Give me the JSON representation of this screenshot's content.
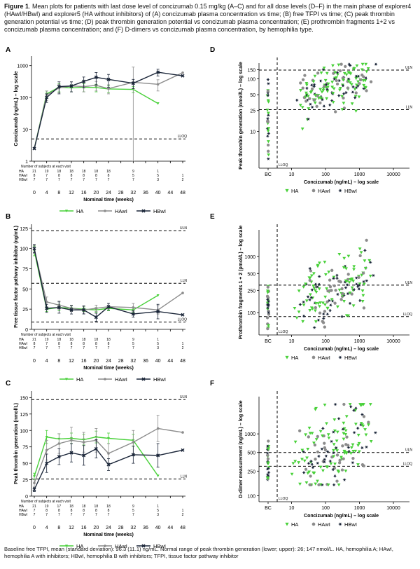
{
  "caption": {
    "lead": "Figure 1",
    "text": ". Mean plots for patients with last dose level of concizumab 0.15 mg/kg (A–C) and for all dose levels (D–F) in the main phase of explorer4 (HAwI/HBwI) and explorer5 (HA without inhibitors) of (A) concizumab plasma concentration vs time; (B) free TFPI vs time; (C) peak thrombin generation potential vs time; (D) peak thrombin generation potential vs concizumab plasma concentration; (E) prothrombin fragments 1+2 vs concizumab plasma concentration; and (F) D-dimers vs concizumab plasma concentration, by hemophilia type."
  },
  "footnote": "Baseline free TFPI, mean (standard deviation): 96.3 (11.1) ng/mL. Normal range of peak thrombin generation (lower; upper): 26; 147 nmol/L. HA, hemophilia A; HAwI, hemophilia A with inhibitors; HBwI, hemophilia B with inhibitors; TFPI, tissue factor pathway inhibitor",
  "colors": {
    "HA": "#49d13a",
    "HAwI": "#8c8c8c",
    "HBwI": "#1a2538"
  },
  "legend": [
    {
      "name": "HA",
      "marker": "triangle"
    },
    {
      "name": "HAwI",
      "marker": "circle"
    },
    {
      "name": "HBwI",
      "marker": "star"
    }
  ],
  "subjects_table": {
    "title": "Number of subjects at each visit",
    "rows": [
      {
        "name": "HA",
        "values": [
          "21",
          "19",
          "18",
          "18",
          "18",
          "18",
          "18",
          "",
          "9",
          "",
          "1",
          ""
        ]
      },
      {
        "name": "HAwI",
        "values": [
          "8",
          "7",
          "8",
          "8",
          "8",
          "8",
          "8",
          "",
          "5",
          "",
          "5",
          "1"
        ]
      },
      {
        "name": "HBwI",
        "values": [
          "7",
          "7",
          "7",
          "7",
          "7",
          "7",
          "7",
          "",
          "7",
          "",
          "3",
          "2"
        ]
      }
    ],
    "rows_C": [
      {
        "name": "HA",
        "values": [
          "21",
          "19",
          "17",
          "18",
          "18",
          "18",
          "18",
          "",
          "9",
          "",
          "1",
          ""
        ]
      },
      {
        "name": "HAwI",
        "values": [
          "7",
          "8",
          "8",
          "8",
          "8",
          "8",
          "8",
          "",
          "5",
          "",
          "5",
          "1"
        ]
      },
      {
        "name": "HBwI",
        "values": [
          "7",
          "7",
          "7",
          "7",
          "7",
          "7",
          "7",
          "",
          "7",
          "",
          "3",
          "2"
        ]
      }
    ]
  },
  "chart_data": [
    {
      "id": "A",
      "type": "line",
      "ylabel": "Concizumab (ng/mL) – log scale",
      "xlabel": "Nominal time (weeks)",
      "x": [
        0,
        4,
        8,
        12,
        16,
        20,
        24,
        28,
        32,
        36,
        40,
        44,
        48
      ],
      "xticks": [
        "0",
        "4",
        "8",
        "12",
        "16",
        "20",
        "24",
        "28",
        "32",
        "36",
        "40",
        "44",
        "48"
      ],
      "yscale": "log",
      "ylim": [
        1,
        2000
      ],
      "yticks": [
        "1",
        "10",
        "100",
        "1000"
      ],
      "hlines": [
        {
          "value": 5,
          "label": "LLOQ"
        }
      ],
      "series": [
        {
          "name": "HA",
          "x": [
            0,
            4,
            8,
            12,
            16,
            20,
            24,
            32,
            40
          ],
          "values": [
            2.5,
            130,
            210,
            200,
            210,
            205,
            185,
            180,
            65
          ],
          "err": [
            0,
            30,
            60,
            50,
            60,
            55,
            45,
            40,
            0
          ]
        },
        {
          "name": "HAwI",
          "x": [
            0,
            4,
            8,
            12,
            16,
            20,
            24,
            32,
            40,
            48
          ],
          "values": [
            2.5,
            120,
            200,
            230,
            220,
            240,
            190,
            300,
            260,
            600
          ],
          "err": [
            0,
            40,
            60,
            80,
            70,
            80,
            60,
            600,
            100,
            0
          ]
        },
        {
          "name": "HBwI",
          "x": [
            0,
            4,
            8,
            12,
            16,
            20,
            24,
            32,
            40,
            48
          ],
          "values": [
            2.5,
            100,
            220,
            230,
            320,
            430,
            370,
            280,
            620,
            480
          ],
          "err": [
            0,
            30,
            90,
            80,
            120,
            180,
            160,
            90,
            150,
            0
          ]
        }
      ]
    },
    {
      "id": "B",
      "type": "line",
      "ylabel": "Free tissue factor pathway inhibitor (ng/mL)",
      "xlabel": "Nominal time (weeks)",
      "x": [
        0,
        4,
        8,
        12,
        16,
        20,
        24,
        28,
        32,
        36,
        40,
        44,
        48
      ],
      "xticks": [
        "0",
        "4",
        "8",
        "12",
        "16",
        "20",
        "24",
        "28",
        "32",
        "36",
        "40",
        "44",
        "48"
      ],
      "yscale": "linear",
      "ylim": [
        0,
        130
      ],
      "yticks": [
        "0",
        "25",
        "50",
        "75",
        "100",
        "125"
      ],
      "hlines": [
        {
          "value": 122,
          "label": "ULN"
        },
        {
          "value": 57,
          "label": "LLN"
        },
        {
          "value": 9,
          "label": "LLOQ"
        }
      ],
      "series": [
        {
          "name": "HA",
          "x": [
            0,
            4,
            8,
            12,
            16,
            20,
            24,
            32,
            40
          ],
          "values": [
            97,
            25,
            27,
            26,
            25,
            24,
            26,
            24,
            42
          ],
          "err": [
            6,
            3,
            4,
            3,
            3,
            3,
            3,
            3,
            0
          ]
        },
        {
          "name": "HAwI",
          "x": [
            0,
            4,
            8,
            12,
            16,
            20,
            24,
            32,
            40,
            48
          ],
          "values": [
            99,
            34,
            30,
            26,
            24,
            26,
            28,
            27,
            24,
            45
          ],
          "err": [
            5,
            6,
            5,
            4,
            4,
            4,
            4,
            5,
            5,
            0
          ]
        },
        {
          "name": "HBwI",
          "x": [
            0,
            4,
            8,
            12,
            16,
            20,
            24,
            32,
            40,
            48
          ],
          "values": [
            100,
            26,
            27,
            24,
            24,
            15,
            28,
            19,
            22,
            18
          ],
          "err": [
            5,
            5,
            7,
            5,
            5,
            5,
            4,
            4,
            9,
            0
          ]
        }
      ]
    },
    {
      "id": "C",
      "type": "line",
      "ylabel": "Peak thrombin generation (nmol/L)",
      "xlabel": "Nominal time (weeks)",
      "x": [
        0,
        4,
        8,
        12,
        16,
        20,
        24,
        28,
        32,
        36,
        40,
        44,
        48
      ],
      "xticks": [
        "0",
        "4",
        "8",
        "12",
        "16",
        "20",
        "24",
        "28",
        "32",
        "36",
        "40",
        "44",
        "48"
      ],
      "yscale": "linear",
      "ylim": [
        0,
        160
      ],
      "yticks": [
        "0",
        "25",
        "50",
        "75",
        "100",
        "125",
        "150"
      ],
      "hlines": [
        {
          "value": 147,
          "label": "ULN"
        },
        {
          "value": 26,
          "label": "LLN"
        }
      ],
      "series": [
        {
          "name": "HA",
          "x": [
            0,
            4,
            8,
            12,
            16,
            20,
            24,
            32,
            40
          ],
          "values": [
            30,
            90,
            87,
            88,
            86,
            90,
            88,
            85,
            31
          ],
          "err": [
            5,
            10,
            8,
            8,
            8,
            9,
            8,
            9,
            0
          ]
        },
        {
          "name": "HAwI",
          "x": [
            0,
            4,
            8,
            12,
            16,
            20,
            24,
            32,
            40,
            48
          ],
          "values": [
            20,
            70,
            80,
            85,
            82,
            85,
            65,
            82,
            103,
            97
          ],
          "err": [
            6,
            15,
            15,
            20,
            15,
            18,
            15,
            18,
            20,
            0
          ]
        },
        {
          "name": "HBwI",
          "x": [
            0,
            4,
            8,
            12,
            16,
            20,
            24,
            32,
            40,
            48
          ],
          "values": [
            10,
            50,
            60,
            66,
            62,
            72,
            48,
            63,
            62,
            70
          ],
          "err": [
            3,
            14,
            12,
            14,
            15,
            14,
            9,
            13,
            18,
            0
          ]
        }
      ]
    },
    {
      "id": "D",
      "type": "scatter",
      "ylabel": "Peak thrombin generation (nmol/L) – log scale",
      "xlabel": "Concizumab (ng/mL) – log scale",
      "xscale": "log",
      "xlim": [
        1,
        20000
      ],
      "xticks": [
        "BC",
        "10",
        "100",
        "1000",
        "10000"
      ],
      "yscale": "log",
      "ylim": [
        2,
        200
      ],
      "yticks": [
        "10",
        "25",
        "50",
        "100",
        "150"
      ],
      "hlines": [
        {
          "value": 147,
          "label": "ULN"
        },
        {
          "value": 26,
          "label": "LLN"
        }
      ],
      "vline": {
        "label": "LLOQ"
      },
      "seed": 11,
      "ymin": 3,
      "ymax": 190,
      "center": 75,
      "spread": 0.22
    },
    {
      "id": "E",
      "type": "scatter",
      "ylabel": "Prothrombin fragments 1 + 2 (pmol/L) – log scale",
      "xlabel": "Concizumab (ng/mL) – log scale",
      "xscale": "log",
      "xlim": [
        1,
        20000
      ],
      "xticks": [
        "BC",
        "10",
        "100",
        "1000",
        "10000"
      ],
      "yscale": "log",
      "ylim": [
        40,
        3000
      ],
      "yticks": [
        "100",
        "250",
        "500",
        "1000"
      ],
      "hlines": [
        {
          "value": 310,
          "label": "ULN"
        },
        {
          "value": 85,
          "label": "LLOQ"
        }
      ],
      "vline": {
        "label": "LLOQ"
      },
      "seed": 23,
      "ymin": 50,
      "ymax": 2700,
      "center": 260,
      "spread": 0.28
    },
    {
      "id": "F",
      "type": "scatter",
      "ylabel": "D-dimer measurement (ng/mL) – log scale",
      "xlabel": "Concizumab (ng/mL) – log scale",
      "xscale": "log",
      "xlim": [
        1,
        20000
      ],
      "xticks": [
        "BC",
        "10",
        "100",
        "1000",
        "10000"
      ],
      "yscale": "log",
      "ylim": [
        80,
        4000
      ],
      "yticks": [
        "100",
        "250",
        "500",
        "1000"
      ],
      "hlines": [
        {
          "value": 500,
          "label": "ULN"
        },
        {
          "value": 300,
          "label": "LLOQ"
        }
      ],
      "vline": {
        "label": "LLOQ"
      },
      "seed": 37,
      "ymin": 150,
      "ymax": 3000,
      "center": 600,
      "spread": 0.32
    }
  ]
}
